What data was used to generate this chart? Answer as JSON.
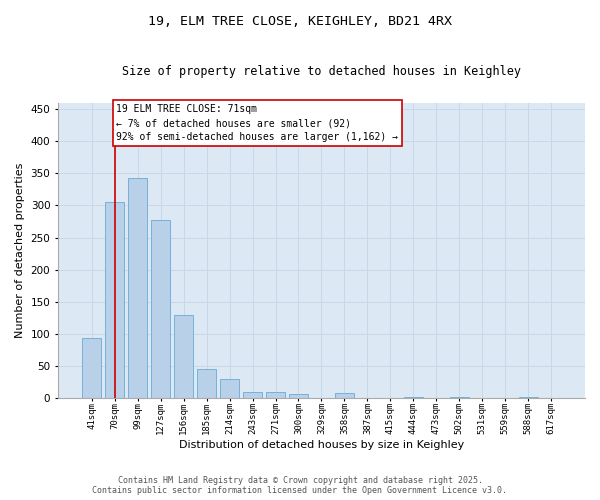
{
  "title_line1": "19, ELM TREE CLOSE, KEIGHLEY, BD21 4RX",
  "title_line2": "Size of property relative to detached houses in Keighley",
  "xlabel": "Distribution of detached houses by size in Keighley",
  "ylabel": "Number of detached properties",
  "categories": [
    "41sqm",
    "70sqm",
    "99sqm",
    "127sqm",
    "156sqm",
    "185sqm",
    "214sqm",
    "243sqm",
    "271sqm",
    "300sqm",
    "329sqm",
    "358sqm",
    "387sqm",
    "415sqm",
    "444sqm",
    "473sqm",
    "502sqm",
    "531sqm",
    "559sqm",
    "588sqm",
    "617sqm"
  ],
  "values": [
    93,
    305,
    343,
    278,
    130,
    46,
    30,
    10,
    10,
    7,
    0,
    8,
    0,
    0,
    2,
    0,
    1,
    0,
    0,
    1,
    0
  ],
  "bar_color": "#b8d0e8",
  "bar_edge_color": "#6aaad4",
  "vline_index": 1,
  "vline_color": "#cc0000",
  "annotation_text": "19 ELM TREE CLOSE: 71sqm\n← 7% of detached houses are smaller (92)\n92% of semi-detached houses are larger (1,162) →",
  "box_edge_color": "#cc0000",
  "ylim": [
    0,
    460
  ],
  "yticks": [
    0,
    50,
    100,
    150,
    200,
    250,
    300,
    350,
    400,
    450
  ],
  "grid_color": "#c8d8ea",
  "background_color": "#dce8f4",
  "footer_text": "Contains HM Land Registry data © Crown copyright and database right 2025.\nContains public sector information licensed under the Open Government Licence v3.0."
}
